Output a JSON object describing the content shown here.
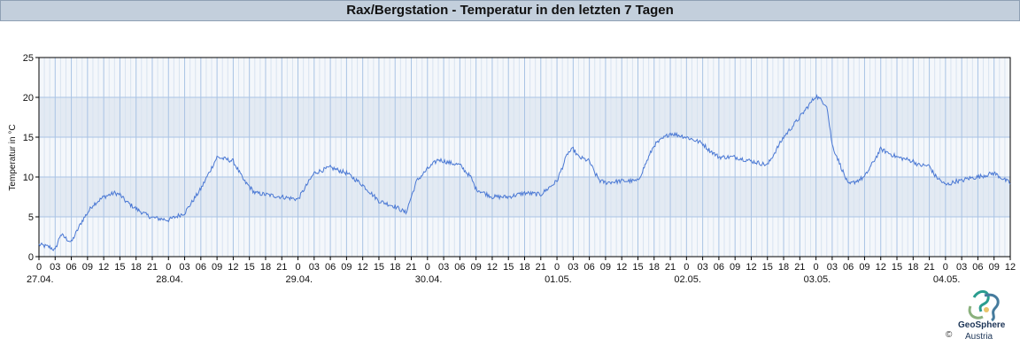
{
  "chart_data": {
    "type": "line",
    "title": "Rax/Bergstation - Temperatur in den letzten 7 Tagen",
    "ylabel": "Temperatur in °C",
    "xlabel": "",
    "ylim": [
      0,
      25
    ],
    "y_ticks": [
      "0",
      "5",
      "10",
      "15",
      "20",
      "25"
    ],
    "x_hour_ticks": [
      "0",
      "03",
      "06",
      "09",
      "12",
      "15",
      "18",
      "21",
      "0",
      "03",
      "06",
      "09",
      "12",
      "15",
      "18",
      "21",
      "0",
      "03",
      "06",
      "09",
      "12",
      "15",
      "18",
      "21",
      "0",
      "03",
      "06",
      "09",
      "12",
      "15",
      "18",
      "21",
      "0",
      "03",
      "06",
      "09",
      "12",
      "15",
      "18",
      "21",
      "0",
      "03",
      "06",
      "09",
      "12",
      "15",
      "18",
      "21",
      "0",
      "03",
      "06",
      "09",
      "12",
      "15",
      "18",
      "21",
      "0",
      "03",
      "06",
      "09",
      "12",
      "15"
    ],
    "x_date_labels": [
      "27.04.",
      "28.04.",
      "29.04.",
      "30.04.",
      "01.05.",
      "02.05.",
      "03.05.",
      "04.05."
    ],
    "hours_total": 180,
    "grid": true,
    "color": "#4a78d4",
    "series": [
      {
        "x_hours": [
          0,
          2,
          3,
          4,
          5,
          6,
          8,
          9,
          10,
          12,
          14,
          15,
          16,
          18,
          20,
          21,
          22,
          24,
          27,
          30,
          33,
          36,
          38,
          39,
          40,
          42,
          45,
          48,
          51,
          54,
          57,
          60,
          63,
          66,
          68,
          70,
          72,
          74,
          75,
          76,
          78,
          80,
          81,
          84,
          87,
          90,
          93,
          96,
          98,
          99,
          100,
          102,
          103,
          104,
          105,
          108,
          111,
          114,
          117,
          120,
          122,
          123,
          124,
          126,
          129,
          132,
          135,
          138,
          141,
          144,
          146,
          147,
          150,
          153,
          156,
          159,
          162,
          163,
          165,
          166,
          168,
          169,
          170,
          171,
          172,
          174,
          177,
          180
        ],
        "values": [
          1.5,
          1.2,
          0.8,
          2.8,
          2.3,
          1.8,
          4.5,
          5.5,
          6.5,
          7.5,
          8.0,
          7.8,
          7.0,
          6.0,
          5.2,
          4.9,
          4.8,
          4.6,
          5.5,
          8.5,
          12.5,
          12.0,
          9.5,
          8.8,
          8.0,
          7.8,
          7.5,
          7.2,
          10.5,
          11.2,
          10.5,
          9.0,
          7.0,
          6.3,
          5.5,
          9.5,
          11.0,
          12.2,
          12.0,
          11.8,
          11.5,
          10.0,
          8.5,
          7.5,
          7.5,
          8.0,
          7.8,
          9.5,
          13.0,
          13.5,
          12.5,
          12.0,
          10.5,
          9.5,
          9.3,
          9.5,
          9.5,
          14.0,
          15.5,
          15.0,
          14.5,
          14.2,
          13.5,
          12.5,
          12.5,
          12.0,
          11.5,
          15.0,
          17.5,
          20.2,
          19.0,
          14.0,
          9.0,
          10.0,
          13.5,
          12.5,
          12.0,
          11.5,
          11.4,
          10.2,
          9.0,
          9.2,
          9.5,
          9.5,
          9.8,
          10.0,
          10.5,
          9.2
        ]
      }
    ]
  },
  "logo": {
    "copyright": "©",
    "name_line1": "GeoSphere",
    "name_line2": "Austria"
  }
}
